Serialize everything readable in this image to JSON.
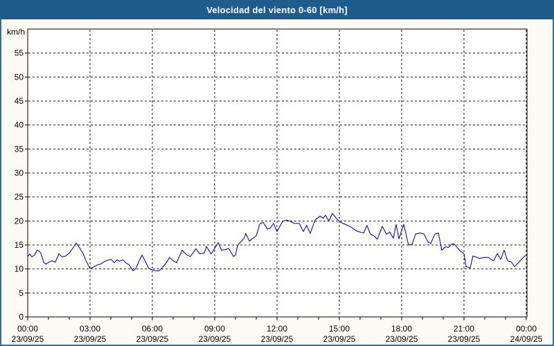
{
  "window": {
    "title": "Velocidad del viento 0-60 [km/h]"
  },
  "colors": {
    "titlebar_bg": "#1e5c8e",
    "title_text": "#ffffff",
    "window_border": "#2e6fa8",
    "background": "#fcfcf5",
    "plot_background": "#fefefa",
    "grid": "#1a1a1a",
    "axis": "#000000",
    "label_text": "#000000",
    "line": "#1f1fb4"
  },
  "chart_data": {
    "type": "line",
    "title": "Velocidad del viento 0-60 [km/h]",
    "y_unit_label": "km/h",
    "ylim": [
      0,
      60
    ],
    "y_ticks": [
      0,
      5,
      10,
      15,
      20,
      25,
      30,
      35,
      40,
      45,
      50,
      55
    ],
    "x_hours_range": [
      0,
      24
    ],
    "x_minor_tick_hours": 1,
    "grid": "dashed",
    "x_ticks": [
      {
        "hour": 0,
        "time": "00:00",
        "date": "23/09/25"
      },
      {
        "hour": 3,
        "time": "03:00",
        "date": "23/09/25"
      },
      {
        "hour": 6,
        "time": "06:00",
        "date": "23/09/25"
      },
      {
        "hour": 9,
        "time": "09:00",
        "date": "23/09/25"
      },
      {
        "hour": 12,
        "time": "12:00",
        "date": "23/09/25"
      },
      {
        "hour": 15,
        "time": "15:00",
        "date": "23/09/25"
      },
      {
        "hour": 18,
        "time": "18:00",
        "date": "23/09/25"
      },
      {
        "hour": 21,
        "time": "21:00",
        "date": "23/09/25"
      },
      {
        "hour": 24,
        "time": "00:00",
        "date": "24/09/25"
      }
    ],
    "series": [
      {
        "name": "Velocidad del viento",
        "units": "km/h",
        "points": [
          [
            0.0,
            12.6
          ],
          [
            0.1,
            13.1
          ],
          [
            0.2,
            12.5
          ],
          [
            0.33,
            12.9
          ],
          [
            0.45,
            13.9
          ],
          [
            0.55,
            13.7
          ],
          [
            0.63,
            13.3
          ],
          [
            0.78,
            11.3
          ],
          [
            0.9,
            11.0
          ],
          [
            1.0,
            11.4
          ],
          [
            1.17,
            11.7
          ],
          [
            1.33,
            11.4
          ],
          [
            1.5,
            13.2
          ],
          [
            1.58,
            12.8
          ],
          [
            1.67,
            12.5
          ],
          [
            1.83,
            12.7
          ],
          [
            2.0,
            13.3
          ],
          [
            2.17,
            14.3
          ],
          [
            2.33,
            15.4
          ],
          [
            2.5,
            14.4
          ],
          [
            2.67,
            13.2
          ],
          [
            2.83,
            11.5
          ],
          [
            3.0,
            10.1
          ],
          [
            3.17,
            10.4
          ],
          [
            3.33,
            10.8
          ],
          [
            3.5,
            11.0
          ],
          [
            3.67,
            11.5
          ],
          [
            3.83,
            11.8
          ],
          [
            4.0,
            12.0
          ],
          [
            4.17,
            11.3
          ],
          [
            4.3,
            11.9
          ],
          [
            4.42,
            11.6
          ],
          [
            4.58,
            11.9
          ],
          [
            4.75,
            11.2
          ],
          [
            4.9,
            10.8
          ],
          [
            5.0,
            10.0
          ],
          [
            5.08,
            9.6
          ],
          [
            5.2,
            10.1
          ],
          [
            5.33,
            11.3
          ],
          [
            5.5,
            12.9
          ],
          [
            5.67,
            11.5
          ],
          [
            5.83,
            10.1
          ],
          [
            6.0,
            9.8
          ],
          [
            6.17,
            9.6
          ],
          [
            6.33,
            9.6
          ],
          [
            6.5,
            10.4
          ],
          [
            6.67,
            11.3
          ],
          [
            6.83,
            12.4
          ],
          [
            7.0,
            11.7
          ],
          [
            7.17,
            11.3
          ],
          [
            7.43,
            13.9
          ],
          [
            7.67,
            12.9
          ],
          [
            7.83,
            12.6
          ],
          [
            8.1,
            14.2
          ],
          [
            8.27,
            13.2
          ],
          [
            8.5,
            13.3
          ],
          [
            8.6,
            14.7
          ],
          [
            8.83,
            13.1
          ],
          [
            9.0,
            14.3
          ],
          [
            9.17,
            15.5
          ],
          [
            9.33,
            13.9
          ],
          [
            9.5,
            14.0
          ],
          [
            9.67,
            14.3
          ],
          [
            9.9,
            12.6
          ],
          [
            10.0,
            12.9
          ],
          [
            10.1,
            14.9
          ],
          [
            10.33,
            16.0
          ],
          [
            10.43,
            16.5
          ],
          [
            10.5,
            17.4
          ],
          [
            10.67,
            15.8
          ],
          [
            10.87,
            16.5
          ],
          [
            11.0,
            16.9
          ],
          [
            11.17,
            19.4
          ],
          [
            11.33,
            19.7
          ],
          [
            11.55,
            18.3
          ],
          [
            11.67,
            18.5
          ],
          [
            11.83,
            19.5
          ],
          [
            12.0,
            17.8
          ],
          [
            12.27,
            19.9
          ],
          [
            12.43,
            20.2
          ],
          [
            12.6,
            20.0
          ],
          [
            12.83,
            19.5
          ],
          [
            13.07,
            19.5
          ],
          [
            13.27,
            17.8
          ],
          [
            13.43,
            19.1
          ],
          [
            13.6,
            17.4
          ],
          [
            13.83,
            20.2
          ],
          [
            14.07,
            21.0
          ],
          [
            14.23,
            20.6
          ],
          [
            14.33,
            21.2
          ],
          [
            14.5,
            20.0
          ],
          [
            14.67,
            21.6
          ],
          [
            14.83,
            20.7
          ],
          [
            15.0,
            19.9
          ],
          [
            15.17,
            19.5
          ],
          [
            15.4,
            19.1
          ],
          [
            15.6,
            18.6
          ],
          [
            15.83,
            17.9
          ],
          [
            16.0,
            17.7
          ],
          [
            16.17,
            17.5
          ],
          [
            16.33,
            19.1
          ],
          [
            16.5,
            17.2
          ],
          [
            16.67,
            16.9
          ],
          [
            16.83,
            16.2
          ],
          [
            17.07,
            18.9
          ],
          [
            17.27,
            17.2
          ],
          [
            17.43,
            17.7
          ],
          [
            17.6,
            16.4
          ],
          [
            17.73,
            19.3
          ],
          [
            17.87,
            16.3
          ],
          [
            18.1,
            19.3
          ],
          [
            18.33,
            15.0
          ],
          [
            18.5,
            15.1
          ],
          [
            18.67,
            17.3
          ],
          [
            18.9,
            17.5
          ],
          [
            19.07,
            17.3
          ],
          [
            19.27,
            15.6
          ],
          [
            19.4,
            15.3
          ],
          [
            19.6,
            17.3
          ],
          [
            19.77,
            17.5
          ],
          [
            19.93,
            13.9
          ],
          [
            20.1,
            14.6
          ],
          [
            20.25,
            14.5
          ],
          [
            20.4,
            15.1
          ],
          [
            20.5,
            15.3
          ],
          [
            20.67,
            14.5
          ],
          [
            20.83,
            13.7
          ],
          [
            21.0,
            13.2
          ],
          [
            21.1,
            10.5
          ],
          [
            21.3,
            10.2
          ],
          [
            21.43,
            12.7
          ],
          [
            21.57,
            12.5
          ],
          [
            21.73,
            12.2
          ],
          [
            22.0,
            12.4
          ],
          [
            22.17,
            12.4
          ],
          [
            22.3,
            12.0
          ],
          [
            22.43,
            11.7
          ],
          [
            22.6,
            13.2
          ],
          [
            22.77,
            12.0
          ],
          [
            22.93,
            13.9
          ],
          [
            23.1,
            11.7
          ],
          [
            23.27,
            11.5
          ],
          [
            23.43,
            10.5
          ],
          [
            23.6,
            11.2
          ],
          [
            23.77,
            12.0
          ],
          [
            23.93,
            12.7
          ],
          [
            24.0,
            12.8
          ]
        ]
      }
    ]
  }
}
